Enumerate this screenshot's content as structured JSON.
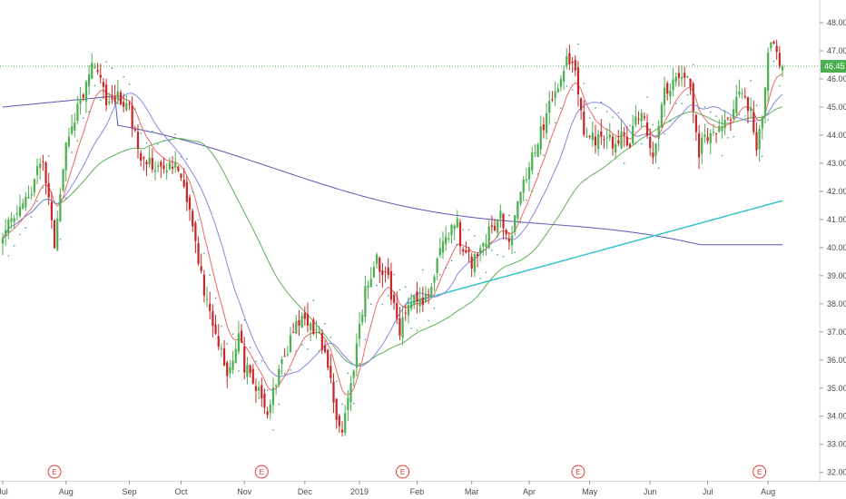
{
  "chart_data": {
    "type": "candlestick",
    "last_price_label": "46.45",
    "last_price": 46.45,
    "y_ticks": [
      {
        "label": "48.00",
        "value": 48
      },
      {
        "label": "47.00",
        "value": 47
      },
      {
        "label": "46.00",
        "value": 46
      },
      {
        "label": "45.00",
        "value": 45
      },
      {
        "label": "44.00",
        "value": 44
      },
      {
        "label": "43.00",
        "value": 43
      },
      {
        "label": "42.00",
        "value": 42
      },
      {
        "label": "41.00",
        "value": 41
      },
      {
        "label": "40.00",
        "value": 40
      },
      {
        "label": "39.00",
        "value": 39
      },
      {
        "label": "38.00",
        "value": 38
      },
      {
        "label": "37.00",
        "value": 37
      },
      {
        "label": "36.00",
        "value": 36
      },
      {
        "label": "35.00",
        "value": 35
      },
      {
        "label": "34.00",
        "value": 34
      },
      {
        "label": "33.00",
        "value": 33
      },
      {
        "label": "32.00",
        "value": 32
      }
    ],
    "x_ticks": [
      {
        "label": "Jul",
        "index": 0
      },
      {
        "label": "Aug",
        "index": 22
      },
      {
        "label": "Sep",
        "index": 44
      },
      {
        "label": "Oct",
        "index": 62
      },
      {
        "label": "Nov",
        "index": 84
      },
      {
        "label": "Dec",
        "index": 105
      },
      {
        "label": "2019",
        "index": 124
      },
      {
        "label": "Feb",
        "index": 144
      },
      {
        "label": "Mar",
        "index": 163
      },
      {
        "label": "Apr",
        "index": 183
      },
      {
        "label": "May",
        "index": 204
      },
      {
        "label": "Jun",
        "index": 225
      },
      {
        "label": "Jul",
        "index": 245
      },
      {
        "label": "Aug",
        "index": 266
      }
    ],
    "earnings_marker_label": "E",
    "earnings_marker_indices": [
      18,
      90,
      139,
      200,
      263
    ],
    "ylim": [
      31.7,
      48.55
    ],
    "n_bars": 272,
    "close_anchors": [
      [
        0,
        40.6
      ],
      [
        5,
        41.3
      ],
      [
        10,
        42.1
      ],
      [
        14,
        43.2
      ],
      [
        18,
        40.2
      ],
      [
        22,
        43.9
      ],
      [
        27,
        45.2
      ],
      [
        32,
        46.6
      ],
      [
        36,
        45.1
      ],
      [
        40,
        45.3
      ],
      [
        44,
        44.9
      ],
      [
        48,
        43.0
      ],
      [
        52,
        42.9
      ],
      [
        56,
        42.7
      ],
      [
        60,
        43.0
      ],
      [
        62,
        42.6
      ],
      [
        66,
        40.6
      ],
      [
        70,
        38.4
      ],
      [
        74,
        37.1
      ],
      [
        78,
        35.2
      ],
      [
        82,
        36.9
      ],
      [
        84,
        35.8
      ],
      [
        88,
        35.1
      ],
      [
        92,
        34.3
      ],
      [
        96,
        35.5
      ],
      [
        100,
        36.8
      ],
      [
        104,
        37.6
      ],
      [
        108,
        37.0
      ],
      [
        112,
        36.5
      ],
      [
        116,
        34.0
      ],
      [
        118,
        33.3
      ],
      [
        122,
        35.7
      ],
      [
        126,
        38.5
      ],
      [
        130,
        39.5
      ],
      [
        134,
        38.8
      ],
      [
        138,
        37.0
      ],
      [
        142,
        38.3
      ],
      [
        146,
        37.8
      ],
      [
        150,
        39.2
      ],
      [
        154,
        40.3
      ],
      [
        158,
        40.8
      ],
      [
        160,
        39.8
      ],
      [
        163,
        39.5
      ],
      [
        168,
        40.4
      ],
      [
        173,
        41.2
      ],
      [
        176,
        40.0
      ],
      [
        180,
        42.0
      ],
      [
        186,
        43.8
      ],
      [
        191,
        45.3
      ],
      [
        196,
        46.6
      ],
      [
        198,
        46.8
      ],
      [
        202,
        44.1
      ],
      [
        206,
        43.8
      ],
      [
        210,
        43.7
      ],
      [
        214,
        43.9
      ],
      [
        218,
        43.8
      ],
      [
        222,
        45.0
      ],
      [
        226,
        43.4
      ],
      [
        230,
        45.6
      ],
      [
        234,
        46.1
      ],
      [
        238,
        46.2
      ],
      [
        240,
        45.0
      ],
      [
        242,
        43.4
      ],
      [
        244,
        43.9
      ],
      [
        248,
        44.2
      ],
      [
        252,
        44.5
      ],
      [
        256,
        45.7
      ],
      [
        258,
        45.2
      ],
      [
        260,
        44.7
      ],
      [
        262,
        43.7
      ],
      [
        264,
        44.4
      ],
      [
        266,
        46.8
      ],
      [
        268,
        47.3
      ],
      [
        270,
        46.5
      ],
      [
        271,
        46.45
      ]
    ]
  }
}
